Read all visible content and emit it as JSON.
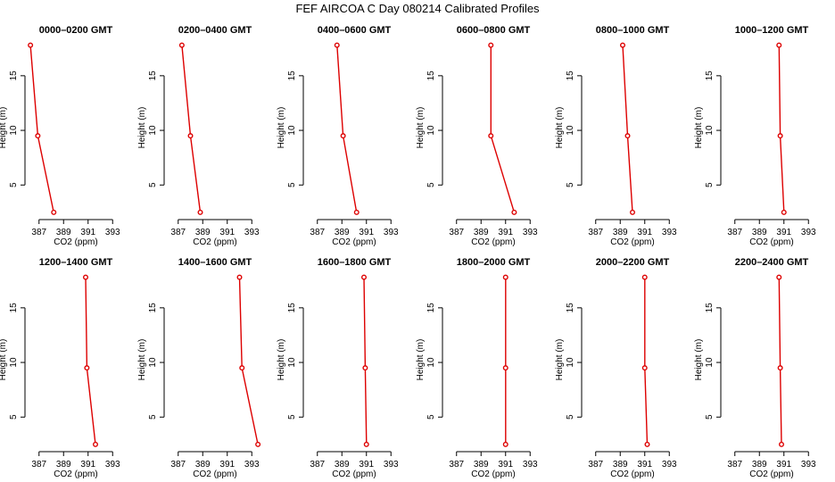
{
  "title": "FEF  AIRCOA C  Day 080214  Calibrated Profiles",
  "chart_data": [
    {
      "type": "line",
      "title": "0000–0200 GMT",
      "xlabel": "CO2 (ppm)",
      "ylabel": "Height (m)",
      "xlim": [
        386,
        394
      ],
      "ylim": [
        2,
        18.5
      ],
      "xticks": [
        387,
        389,
        391,
        393
      ],
      "yticks": [
        5,
        10,
        15
      ],
      "series": [
        {
          "x": [
            388.2,
            386.9,
            386.3
          ],
          "y": [
            2.5,
            9.5,
            17.8
          ]
        }
      ]
    },
    {
      "type": "line",
      "title": "0200–0400 GMT",
      "xlabel": "CO2 (ppm)",
      "ylabel": "Height (m)",
      "xlim": [
        386,
        394
      ],
      "ylim": [
        2,
        18.5
      ],
      "xticks": [
        387,
        389,
        391,
        393
      ],
      "yticks": [
        5,
        10,
        15
      ],
      "series": [
        {
          "x": [
            388.8,
            388.0,
            387.3
          ],
          "y": [
            2.5,
            9.5,
            17.8
          ]
        }
      ]
    },
    {
      "type": "line",
      "title": "0400–0600 GMT",
      "xlabel": "CO2 (ppm)",
      "ylabel": "Height (m)",
      "xlim": [
        386,
        394
      ],
      "ylim": [
        2,
        18.5
      ],
      "xticks": [
        387,
        389,
        391,
        393
      ],
      "yticks": [
        5,
        10,
        15
      ],
      "series": [
        {
          "x": [
            390.2,
            389.1,
            388.6
          ],
          "y": [
            2.5,
            9.5,
            17.8
          ]
        }
      ]
    },
    {
      "type": "line",
      "title": "0600–0800 GMT",
      "xlabel": "CO2 (ppm)",
      "ylabel": "Height (m)",
      "xlim": [
        386,
        394
      ],
      "ylim": [
        2,
        18.5
      ],
      "xticks": [
        387,
        389,
        391,
        393
      ],
      "yticks": [
        5,
        10,
        15
      ],
      "series": [
        {
          "x": [
            391.7,
            389.8,
            389.8
          ],
          "y": [
            2.5,
            9.5,
            17.8
          ]
        }
      ]
    },
    {
      "type": "line",
      "title": "0800–1000 GMT",
      "xlabel": "CO2 (ppm)",
      "ylabel": "Height (m)",
      "xlim": [
        386,
        394
      ],
      "ylim": [
        2,
        18.5
      ],
      "xticks": [
        387,
        389,
        391,
        393
      ],
      "yticks": [
        5,
        10,
        15
      ],
      "series": [
        {
          "x": [
            390.0,
            389.6,
            389.2
          ],
          "y": [
            2.5,
            9.5,
            17.8
          ]
        }
      ]
    },
    {
      "type": "line",
      "title": "1000–1200 GMT",
      "xlabel": "CO2 (ppm)",
      "ylabel": "Height (m)",
      "xlim": [
        386,
        394
      ],
      "ylim": [
        2,
        18.5
      ],
      "xticks": [
        387,
        389,
        391,
        393
      ],
      "yticks": [
        5,
        10,
        15
      ],
      "series": [
        {
          "x": [
            391.0,
            390.7,
            390.6
          ],
          "y": [
            2.5,
            9.5,
            17.8
          ]
        }
      ]
    },
    {
      "type": "line",
      "title": "1200–1400 GMT",
      "xlabel": "CO2 (ppm)",
      "ylabel": "Height (m)",
      "xlim": [
        386,
        394
      ],
      "ylim": [
        2,
        18.5
      ],
      "xticks": [
        387,
        389,
        391,
        393
      ],
      "yticks": [
        5,
        10,
        15
      ],
      "series": [
        {
          "x": [
            391.6,
            390.9,
            390.8
          ],
          "y": [
            2.5,
            9.5,
            17.8
          ]
        }
      ]
    },
    {
      "type": "line",
      "title": "1400–1600 GMT",
      "xlabel": "CO2 (ppm)",
      "ylabel": "Height (m)",
      "xlim": [
        386,
        394
      ],
      "ylim": [
        2,
        18.5
      ],
      "xticks": [
        387,
        389,
        391,
        393
      ],
      "yticks": [
        5,
        10,
        15
      ],
      "series": [
        {
          "x": [
            393.5,
            392.2,
            392.0
          ],
          "y": [
            2.5,
            9.5,
            17.8
          ]
        }
      ]
    },
    {
      "type": "line",
      "title": "1600–1800 GMT",
      "xlabel": "CO2 (ppm)",
      "ylabel": "Height (m)",
      "xlim": [
        386,
        394
      ],
      "ylim": [
        2,
        18.5
      ],
      "xticks": [
        387,
        389,
        391,
        393
      ],
      "yticks": [
        5,
        10,
        15
      ],
      "series": [
        {
          "x": [
            391.0,
            390.9,
            390.8
          ],
          "y": [
            2.5,
            9.5,
            17.8
          ]
        }
      ]
    },
    {
      "type": "line",
      "title": "1800–2000 GMT",
      "xlabel": "CO2 (ppm)",
      "ylabel": "Height (m)",
      "xlim": [
        386,
        394
      ],
      "ylim": [
        2,
        18.5
      ],
      "xticks": [
        387,
        389,
        391,
        393
      ],
      "yticks": [
        5,
        10,
        15
      ],
      "series": [
        {
          "x": [
            391.0,
            391.0,
            391.0
          ],
          "y": [
            2.5,
            9.5,
            17.8
          ]
        }
      ]
    },
    {
      "type": "line",
      "title": "2000–2200 GMT",
      "xlabel": "CO2 (ppm)",
      "ylabel": "Height (m)",
      "xlim": [
        386,
        394
      ],
      "ylim": [
        2,
        18.5
      ],
      "xticks": [
        387,
        389,
        391,
        393
      ],
      "yticks": [
        5,
        10,
        15
      ],
      "series": [
        {
          "x": [
            391.2,
            391.0,
            391.0
          ],
          "y": [
            2.5,
            9.5,
            17.8
          ]
        }
      ]
    },
    {
      "type": "line",
      "title": "2200–2400 GMT",
      "xlabel": "CO2 (ppm)",
      "ylabel": "Height (m)",
      "xlim": [
        386,
        394
      ],
      "ylim": [
        2,
        18.5
      ],
      "xticks": [
        387,
        389,
        391,
        393
      ],
      "yticks": [
        5,
        10,
        15
      ],
      "series": [
        {
          "x": [
            390.8,
            390.7,
            390.6
          ],
          "y": [
            2.5,
            9.5,
            17.8
          ]
        }
      ]
    }
  ],
  "colors": {
    "line": "#dd0000",
    "marker": "#dd0000",
    "axis": "#000000"
  }
}
